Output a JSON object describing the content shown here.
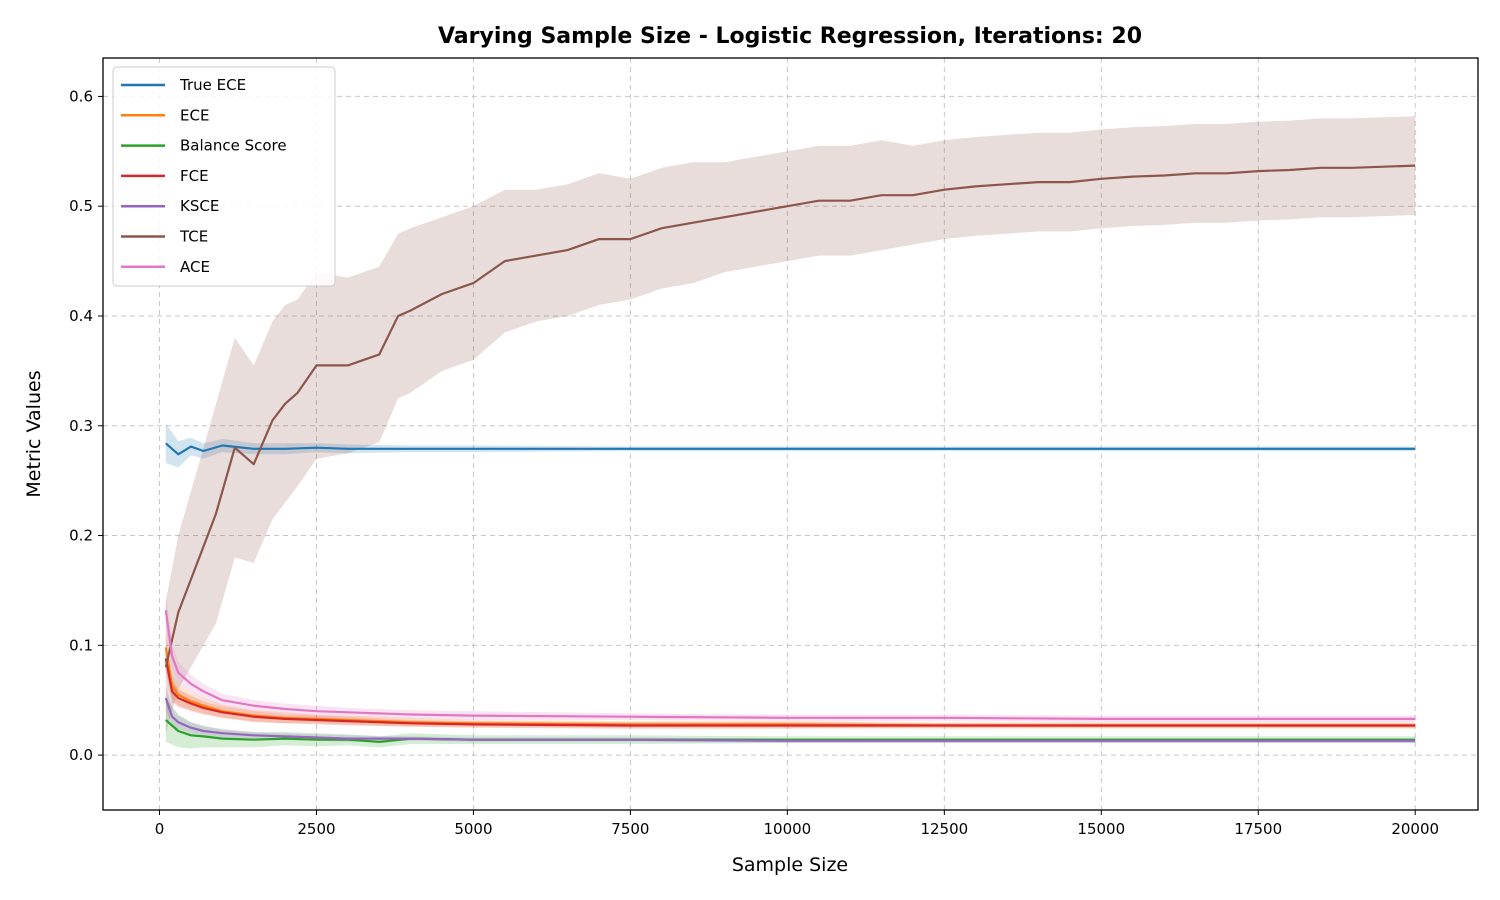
{
  "chart_data": {
    "type": "line",
    "title": "Varying Sample Size - Logistic Regression, Iterations: 20",
    "xlabel": "Sample Size",
    "ylabel": "Metric Values",
    "xlim": [
      -900,
      21000
    ],
    "ylim": [
      -0.05,
      0.635
    ],
    "xticks": [
      0,
      2500,
      5000,
      7500,
      10000,
      12500,
      15000,
      17500,
      20000
    ],
    "xtick_labels": [
      "0",
      "2500",
      "5000",
      "7500",
      "10000",
      "12500",
      "15000",
      "17500",
      "20000"
    ],
    "yticks": [
      0.0,
      0.1,
      0.2,
      0.3,
      0.4,
      0.5,
      0.6
    ],
    "ytick_labels": [
      "0.0",
      "0.1",
      "0.2",
      "0.3",
      "0.4",
      "0.5",
      "0.6"
    ],
    "grid": true,
    "legend_position": "top-left",
    "shaded_band": "spread across iterations",
    "series": [
      {
        "name": "True ECE",
        "color": "#1f77b4",
        "x": [
          100,
          300,
          500,
          700,
          1000,
          1500,
          2000,
          2500,
          3000,
          4000,
          5000,
          7500,
          10000,
          12500,
          15000,
          17500,
          20000
        ],
        "y": [
          0.284,
          0.274,
          0.281,
          0.277,
          0.282,
          0.279,
          0.279,
          0.28,
          0.279,
          0.279,
          0.279,
          0.279,
          0.279,
          0.279,
          0.279,
          0.279,
          0.279
        ],
        "band": [
          0.018,
          0.012,
          0.008,
          0.007,
          0.006,
          0.005,
          0.005,
          0.004,
          0.004,
          0.003,
          0.003,
          0.002,
          0.002,
          0.002,
          0.002,
          0.002,
          0.002
        ]
      },
      {
        "name": "ECE",
        "color": "#ff7f0e",
        "x": [
          100,
          200,
          300,
          500,
          700,
          1000,
          1500,
          2000,
          2500,
          3000,
          4000,
          5000,
          7500,
          10000,
          12500,
          15000,
          17500,
          20000
        ],
        "y": [
          0.098,
          0.063,
          0.055,
          0.049,
          0.045,
          0.04,
          0.036,
          0.034,
          0.033,
          0.032,
          0.03,
          0.029,
          0.028,
          0.028,
          0.027,
          0.027,
          0.027,
          0.027
        ],
        "band": [
          0.015,
          0.012,
          0.01,
          0.008,
          0.007,
          0.006,
          0.005,
          0.005,
          0.004,
          0.004,
          0.004,
          0.003,
          0.003,
          0.003,
          0.003,
          0.003,
          0.003,
          0.003
        ]
      },
      {
        "name": "Balance Score",
        "color": "#2ca02c",
        "x": [
          100,
          300,
          500,
          700,
          1000,
          1500,
          2000,
          2500,
          3000,
          3500,
          4000,
          5000,
          7500,
          10000,
          12500,
          15000,
          17500,
          20000
        ],
        "y": [
          0.032,
          0.022,
          0.018,
          0.017,
          0.015,
          0.014,
          0.015,
          0.014,
          0.014,
          0.012,
          0.015,
          0.014,
          0.014,
          0.014,
          0.014,
          0.014,
          0.014,
          0.014
        ],
        "band": [
          0.02,
          0.015,
          0.012,
          0.01,
          0.008,
          0.007,
          0.006,
          0.006,
          0.005,
          0.005,
          0.005,
          0.004,
          0.004,
          0.003,
          0.003,
          0.003,
          0.003,
          0.003
        ]
      },
      {
        "name": "FCE",
        "color": "#d62728",
        "x": [
          100,
          200,
          300,
          500,
          700,
          1000,
          1500,
          2000,
          2500,
          3000,
          4000,
          5000,
          7500,
          10000,
          12500,
          15000,
          17500,
          20000
        ],
        "y": [
          0.088,
          0.058,
          0.052,
          0.047,
          0.043,
          0.039,
          0.035,
          0.033,
          0.032,
          0.031,
          0.029,
          0.028,
          0.027,
          0.027,
          0.027,
          0.027,
          0.027,
          0.027
        ],
        "band": [
          0.012,
          0.01,
          0.008,
          0.007,
          0.006,
          0.005,
          0.005,
          0.004,
          0.004,
          0.004,
          0.003,
          0.003,
          0.003,
          0.003,
          0.002,
          0.002,
          0.002,
          0.002
        ]
      },
      {
        "name": "KSCE",
        "color": "#9467bd",
        "x": [
          100,
          200,
          300,
          500,
          700,
          1000,
          1500,
          2000,
          2500,
          3000,
          4000,
          5000,
          7500,
          10000,
          12500,
          15000,
          17500,
          20000
        ],
        "y": [
          0.052,
          0.035,
          0.03,
          0.025,
          0.022,
          0.02,
          0.018,
          0.017,
          0.016,
          0.015,
          0.015,
          0.014,
          0.014,
          0.013,
          0.013,
          0.013,
          0.013,
          0.013
        ],
        "band": [
          0.01,
          0.008,
          0.006,
          0.005,
          0.004,
          0.004,
          0.003,
          0.003,
          0.003,
          0.003,
          0.002,
          0.002,
          0.002,
          0.002,
          0.002,
          0.002,
          0.002,
          0.002
        ]
      },
      {
        "name": "TCE",
        "color": "#8c564b",
        "x": [
          100,
          300,
          500,
          700,
          900,
          1200,
          1500,
          1800,
          2000,
          2200,
          2500,
          3000,
          3500,
          3800,
          4000,
          4500,
          5000,
          5500,
          6000,
          6500,
          7000,
          7500,
          8000,
          8500,
          9000,
          9500,
          10000,
          10500,
          11000,
          11500,
          12000,
          12500,
          13000,
          13500,
          14000,
          14500,
          15000,
          15500,
          16000,
          16500,
          17000,
          17500,
          18000,
          18500,
          19000,
          19500,
          20000
        ],
        "y": [
          0.08,
          0.13,
          0.16,
          0.19,
          0.22,
          0.28,
          0.265,
          0.305,
          0.32,
          0.33,
          0.355,
          0.355,
          0.365,
          0.4,
          0.405,
          0.42,
          0.43,
          0.45,
          0.455,
          0.46,
          0.47,
          0.47,
          0.48,
          0.485,
          0.49,
          0.495,
          0.5,
          0.505,
          0.505,
          0.51,
          0.51,
          0.515,
          0.518,
          0.52,
          0.522,
          0.522,
          0.525,
          0.527,
          0.528,
          0.53,
          0.53,
          0.532,
          0.533,
          0.535,
          0.535,
          0.536,
          0.537
        ],
        "band": [
          0.06,
          0.07,
          0.08,
          0.09,
          0.1,
          0.1,
          0.09,
          0.09,
          0.09,
          0.085,
          0.085,
          0.08,
          0.08,
          0.075,
          0.075,
          0.07,
          0.07,
          0.065,
          0.06,
          0.06,
          0.06,
          0.055,
          0.055,
          0.055,
          0.05,
          0.05,
          0.05,
          0.05,
          0.05,
          0.05,
          0.045,
          0.045,
          0.045,
          0.045,
          0.045,
          0.045,
          0.045,
          0.045,
          0.045,
          0.045,
          0.045,
          0.045,
          0.045,
          0.045,
          0.045,
          0.045,
          0.045
        ]
      },
      {
        "name": "ACE",
        "color": "#e377c2",
        "x": [
          100,
          200,
          300,
          500,
          700,
          1000,
          1500,
          2000,
          2500,
          3000,
          4000,
          5000,
          7500,
          10000,
          12500,
          15000,
          17500,
          20000
        ],
        "y": [
          0.132,
          0.09,
          0.075,
          0.065,
          0.058,
          0.05,
          0.045,
          0.042,
          0.04,
          0.039,
          0.037,
          0.036,
          0.035,
          0.034,
          0.034,
          0.033,
          0.033,
          0.033
        ],
        "band": [
          0.015,
          0.012,
          0.01,
          0.008,
          0.007,
          0.006,
          0.005,
          0.005,
          0.005,
          0.004,
          0.004,
          0.004,
          0.003,
          0.003,
          0.003,
          0.003,
          0.003,
          0.003
        ]
      }
    ]
  }
}
